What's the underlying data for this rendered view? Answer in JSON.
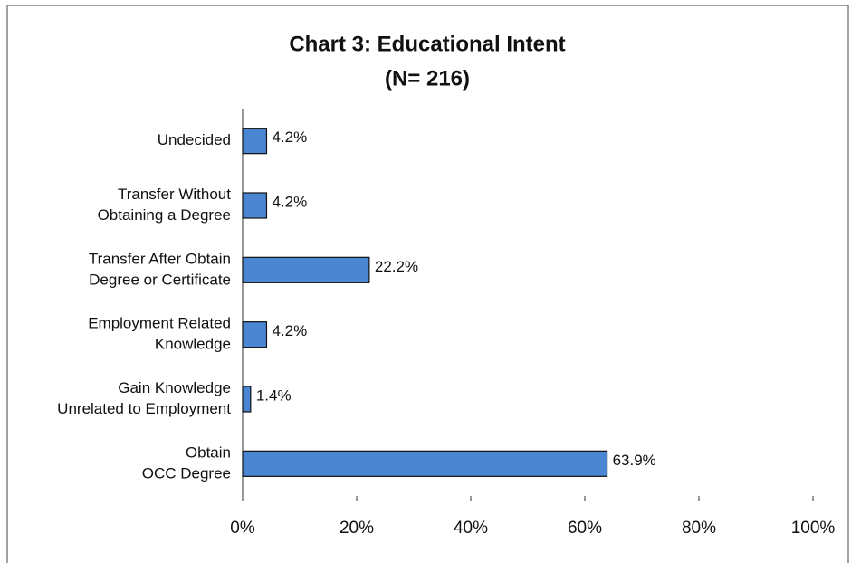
{
  "chart_data": {
    "type": "bar",
    "orientation": "horizontal",
    "title": "Chart 3: Educational Intent",
    "subtitle": "(N= 216)",
    "categories": [
      [
        "Undecided"
      ],
      [
        "Transfer Without",
        "Obtaining a Degree"
      ],
      [
        "Transfer After Obtain",
        "Degree or Certificate"
      ],
      [
        "Employment Related",
        "Knowledge"
      ],
      [
        "Gain Knowledge",
        "Unrelated to Employment"
      ],
      [
        "Obtain",
        "OCC Degree"
      ]
    ],
    "values": [
      4.2,
      4.2,
      22.2,
      4.2,
      1.4,
      63.9
    ],
    "value_labels": [
      "4.2%",
      "4.2%",
      "22.2%",
      "4.2%",
      "1.4%",
      "63.9%"
    ],
    "color": "#4a86d2",
    "xlim": [
      0,
      100
    ],
    "xticks": [
      {
        "value": 0,
        "label": "0%"
      },
      {
        "value": 20,
        "label": "20%"
      },
      {
        "value": 40,
        "label": "40%"
      },
      {
        "value": 60,
        "label": "60%"
      },
      {
        "value": 80,
        "label": "80%"
      },
      {
        "value": 100,
        "label": "100%"
      }
    ],
    "grid": false
  }
}
